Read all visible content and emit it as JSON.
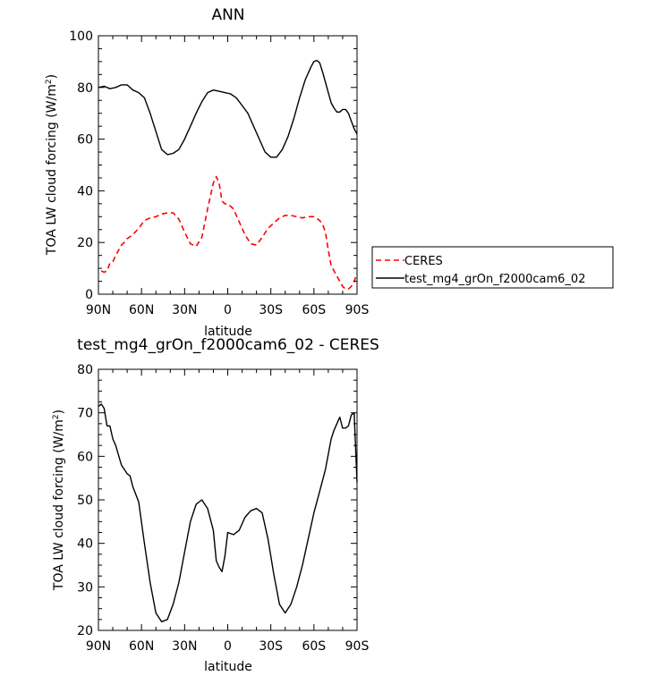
{
  "chart_data": [
    {
      "type": "line",
      "title": "ANN",
      "xlabel": "latitude",
      "ylabel_prefix": "TOA LW cloud forcing (W/m",
      "ylabel_sup": "2",
      "ylabel_suffix": ")",
      "xlim": [
        90,
        -90
      ],
      "ylim": [
        0,
        100
      ],
      "xticks": [
        90,
        60,
        30,
        0,
        -30,
        -60,
        -90
      ],
      "xtick_labels": [
        "90N",
        "60N",
        "30N",
        "0",
        "30S",
        "60S",
        "90S"
      ],
      "yticks": [
        0,
        20,
        40,
        60,
        80,
        100
      ],
      "ytick_labels": [
        "0",
        "20",
        "40",
        "60",
        "80",
        "100"
      ],
      "legend_position": "right",
      "series": [
        {
          "name": "CERES",
          "color": "#ff0000",
          "dash": true,
          "x": [
            88,
            86,
            84,
            82,
            80,
            78,
            76,
            74,
            72,
            70,
            66,
            62,
            58,
            54,
            50,
            46,
            42,
            38,
            34,
            30,
            26,
            22,
            18,
            14,
            10,
            8,
            6,
            4,
            2,
            0,
            -4,
            -8,
            -12,
            -16,
            -20,
            -24,
            -28,
            -32,
            -36,
            -40,
            -44,
            -48,
            -52,
            -56,
            -60,
            -64,
            -66,
            -68,
            -70,
            -72,
            -74,
            -76,
            -78,
            -80,
            -82,
            -84,
            -86,
            -88,
            -90
          ],
          "y": [
            9,
            8.5,
            9,
            12,
            12.5,
            15,
            17,
            19,
            20,
            21.5,
            23,
            25.5,
            28.5,
            29.5,
            30,
            31,
            31.5,
            31.5,
            29,
            24,
            19.5,
            18.5,
            22,
            33,
            43,
            45.5,
            43,
            36,
            35,
            35,
            33,
            28,
            23,
            19.5,
            19,
            22,
            25.5,
            27.5,
            29.5,
            30.5,
            30.5,
            30,
            29.5,
            30,
            30,
            28.5,
            27,
            24,
            17,
            11,
            9,
            7,
            5,
            3,
            2,
            2,
            3,
            5,
            8
          ]
        },
        {
          "name": "test_mg4_grOn_f2000cam6_02",
          "color": "#000000",
          "dash": false,
          "x": [
            90,
            86,
            82,
            78,
            74,
            70,
            66,
            62,
            58,
            54,
            50,
            46,
            42,
            38,
            34,
            30,
            26,
            22,
            18,
            14,
            10,
            6,
            2,
            -2,
            -6,
            -10,
            -14,
            -18,
            -22,
            -26,
            -30,
            -34,
            -38,
            -42,
            -46,
            -50,
            -54,
            -58,
            -60,
            -62,
            -64,
            -66,
            -68,
            -70,
            -72,
            -74,
            -76,
            -78,
            -80,
            -82,
            -84,
            -86,
            -88,
            -90
          ],
          "y": [
            80,
            80.5,
            79.5,
            80,
            81,
            81,
            79,
            78,
            76,
            70,
            63,
            56,
            54,
            54.5,
            56,
            60,
            65,
            70,
            74.5,
            78,
            79,
            78.5,
            78,
            77.5,
            76,
            73,
            70,
            65,
            60,
            55,
            53,
            53,
            56,
            61,
            68,
            76,
            83,
            88,
            90,
            90.5,
            89.5,
            86,
            82,
            78,
            74,
            72,
            70.5,
            70.5,
            71.5,
            71.5,
            70,
            67,
            64,
            62
          ]
        }
      ]
    },
    {
      "type": "line",
      "title": "test_mg4_grOn_f2000cam6_02 - CERES",
      "xlabel": "latitude",
      "ylabel_prefix": "TOA LW cloud forcing (W/m",
      "ylabel_sup": "2",
      "ylabel_suffix": ")",
      "xlim": [
        90,
        -90
      ],
      "ylim": [
        20,
        80
      ],
      "xticks": [
        90,
        60,
        30,
        0,
        -30,
        -60,
        -90
      ],
      "xtick_labels": [
        "90N",
        "60N",
        "30N",
        "0",
        "30S",
        "60S",
        "90S"
      ],
      "yticks": [
        20,
        30,
        40,
        50,
        60,
        70,
        80
      ],
      "ytick_labels": [
        "20",
        "30",
        "40",
        "50",
        "60",
        "70",
        "80"
      ],
      "series": [
        {
          "name": "",
          "color": "#000000",
          "dash": false,
          "x": [
            90,
            88,
            86,
            84,
            82,
            80,
            78,
            74,
            70,
            68,
            66,
            62,
            58,
            54,
            50,
            46,
            42,
            38,
            34,
            30,
            26,
            22,
            18,
            14,
            10,
            8,
            6,
            4,
            2,
            0,
            -4,
            -8,
            -12,
            -16,
            -20,
            -24,
            -28,
            -32,
            -36,
            -40,
            -44,
            -48,
            -52,
            -56,
            -60,
            -64,
            -68,
            -70,
            -72,
            -74,
            -76,
            -78,
            -80,
            -82,
            -84,
            -86,
            -88,
            -90
          ],
          "y": [
            71.5,
            72,
            71,
            67,
            67,
            64,
            62.5,
            58,
            56,
            55.5,
            53,
            49.5,
            40,
            31,
            24,
            22,
            22.5,
            26,
            31,
            38,
            45,
            49,
            50,
            48,
            43,
            36,
            34.5,
            33.5,
            37,
            42.5,
            42,
            43,
            46,
            47.5,
            48,
            47,
            41,
            33,
            26,
            24,
            26,
            30,
            35,
            41,
            47,
            52,
            57,
            60.5,
            64,
            66,
            67.5,
            69,
            66.5,
            66.5,
            67,
            69.5,
            70,
            54
          ]
        }
      ]
    }
  ]
}
